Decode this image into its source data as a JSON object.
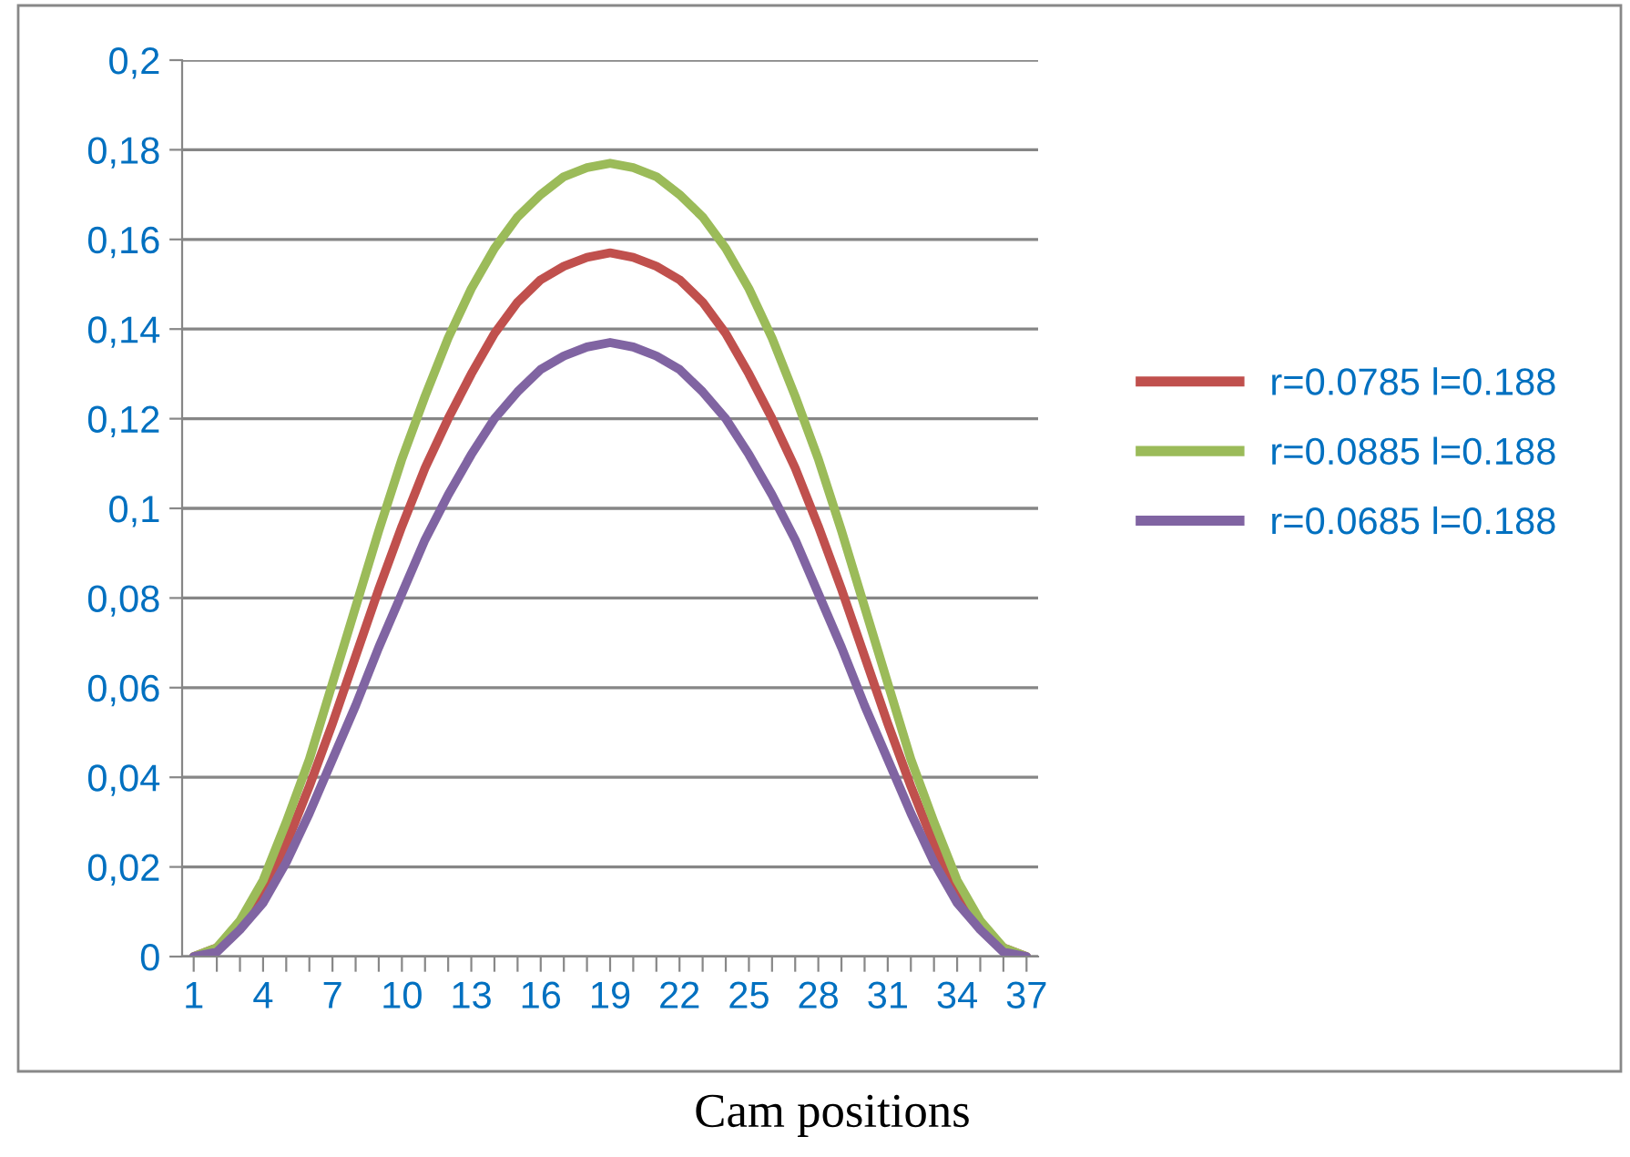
{
  "chart_data": {
    "type": "line",
    "xlabel": "Cam positions",
    "categories": [
      "1",
      null,
      null,
      "4",
      null,
      null,
      "7",
      null,
      null,
      "10",
      null,
      null,
      "13",
      null,
      null,
      "16",
      null,
      null,
      "19",
      null,
      null,
      "22",
      null,
      null,
      "25",
      null,
      null,
      "28",
      null,
      null,
      "31",
      null,
      null,
      "34",
      null,
      null,
      "37"
    ],
    "series": [
      {
        "name": "r=0.0785 l=0.188",
        "color": "#c0504d",
        "values": [
          0,
          0.002,
          0.007,
          0.015,
          0.025,
          0.038,
          0.052,
          0.067,
          0.082,
          0.096,
          0.109,
          0.12,
          0.13,
          0.139,
          0.146,
          0.151,
          0.154,
          0.156,
          0.157,
          0.156,
          0.154,
          0.151,
          0.146,
          0.139,
          0.13,
          0.12,
          0.109,
          0.096,
          0.082,
          0.067,
          0.052,
          0.038,
          0.025,
          0.015,
          0.007,
          0.002,
          0
        ]
      },
      {
        "name": "r=0.0885 l=0.188",
        "color": "#9bbb59",
        "values": [
          0,
          0.002,
          0.008,
          0.017,
          0.03,
          0.044,
          0.061,
          0.078,
          0.095,
          0.111,
          0.125,
          0.138,
          0.149,
          0.158,
          0.165,
          0.17,
          0.174,
          0.176,
          0.177,
          0.176,
          0.174,
          0.17,
          0.165,
          0.158,
          0.149,
          0.138,
          0.125,
          0.111,
          0.095,
          0.078,
          0.061,
          0.044,
          0.03,
          0.017,
          0.008,
          0.002,
          0
        ]
      },
      {
        "name": "r=0.0685 l=0.188",
        "color": "#8064a2",
        "values": [
          0,
          0.001,
          0.006,
          0.012,
          0.021,
          0.032,
          0.044,
          0.056,
          0.069,
          0.081,
          0.093,
          0.103,
          0.112,
          0.12,
          0.126,
          0.131,
          0.134,
          0.136,
          0.137,
          0.136,
          0.134,
          0.131,
          0.126,
          0.12,
          0.112,
          0.103,
          0.093,
          0.081,
          0.069,
          0.056,
          0.044,
          0.032,
          0.021,
          0.012,
          0.006,
          0.001,
          0
        ]
      }
    ],
    "ylim": [
      0,
      0.2
    ],
    "yticks": [
      {
        "value": 0,
        "label": "0"
      },
      {
        "value": 0.02,
        "label": "0,02"
      },
      {
        "value": 0.04,
        "label": "0,04"
      },
      {
        "value": 0.06,
        "label": "0,06"
      },
      {
        "value": 0.08,
        "label": "0,08"
      },
      {
        "value": 0.1,
        "label": "0,1"
      },
      {
        "value": 0.12,
        "label": "0,12"
      },
      {
        "value": 0.14,
        "label": "0,14"
      },
      {
        "value": 0.16,
        "label": "0,16"
      },
      {
        "value": 0.18,
        "label": "0,18"
      },
      {
        "value": 0.2,
        "label": "0,2"
      }
    ],
    "grid": "y",
    "legend": "right",
    "marker": "none",
    "line_style": "solid"
  }
}
